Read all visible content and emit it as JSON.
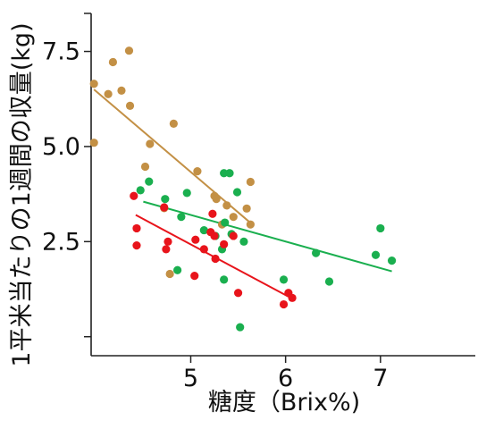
{
  "chart_data": {
    "type": "scatter",
    "title": "",
    "xlabel": "糖度（Brix%)",
    "ylabel": "1平米当たりの1週間の収量(kg)",
    "xlim": [
      3.95,
      8.0
    ],
    "ylim": [
      -0.5,
      8.5
    ],
    "x_ticks": [
      5,
      6,
      7
    ],
    "x_tick_labels": [
      "5",
      "6",
      "7"
    ],
    "y_ticks": [
      2.5,
      5.0,
      7.5
    ],
    "y_tick_labels": [
      "2.5",
      "5.0",
      "7.5"
    ],
    "y_minor_ticks": [
      0,
      8.5
    ],
    "grid": false,
    "legend": "none",
    "series": [
      {
        "color": "#c39045",
        "points": [
          [
            3.98,
            6.65
          ],
          [
            3.98,
            5.1
          ],
          [
            4.13,
            6.38
          ],
          [
            4.18,
            7.22
          ],
          [
            4.27,
            6.47
          ],
          [
            4.35,
            7.52
          ],
          [
            4.36,
            6.07
          ],
          [
            4.52,
            4.47
          ],
          [
            4.57,
            5.07
          ],
          [
            4.72,
            3.38
          ],
          [
            4.78,
            1.65
          ],
          [
            4.82,
            5.6
          ],
          [
            5.07,
            4.35
          ],
          [
            5.25,
            3.7
          ],
          [
            5.27,
            3.62
          ],
          [
            5.33,
            2.95
          ],
          [
            5.38,
            3.45
          ],
          [
            5.45,
            3.15
          ],
          [
            5.59,
            3.37
          ],
          [
            5.63,
            2.95
          ],
          [
            5.63,
            4.07
          ]
        ],
        "trend": [
          [
            3.98,
            6.5
          ],
          [
            5.65,
            2.95
          ]
        ]
      },
      {
        "color": "#1aaf4f",
        "points": [
          [
            4.47,
            3.85
          ],
          [
            4.56,
            4.08
          ],
          [
            4.73,
            3.62
          ],
          [
            4.86,
            1.75
          ],
          [
            4.9,
            3.15
          ],
          [
            4.96,
            3.78
          ],
          [
            5.14,
            2.8
          ],
          [
            5.26,
            2.65
          ],
          [
            5.33,
            2.3
          ],
          [
            5.35,
            1.5
          ],
          [
            5.35,
            4.3
          ],
          [
            5.36,
            3.0
          ],
          [
            5.41,
            4.3
          ],
          [
            5.43,
            2.7
          ],
          [
            5.49,
            3.8
          ],
          [
            5.52,
            0.25
          ],
          [
            5.56,
            2.5
          ],
          [
            5.98,
            1.5
          ],
          [
            6.32,
            2.2
          ],
          [
            6.46,
            1.45
          ],
          [
            6.95,
            2.15
          ],
          [
            7.0,
            2.85
          ],
          [
            7.12,
            2.0
          ]
        ],
        "trend": [
          [
            4.5,
            3.55
          ],
          [
            7.12,
            1.72
          ]
        ]
      },
      {
        "color": "#e8141b",
        "points": [
          [
            4.4,
            3.7
          ],
          [
            4.43,
            2.85
          ],
          [
            4.43,
            2.4
          ],
          [
            4.72,
            3.4
          ],
          [
            4.74,
            2.3
          ],
          [
            4.76,
            2.5
          ],
          [
            5.04,
            1.6
          ],
          [
            5.05,
            2.55
          ],
          [
            5.14,
            2.3
          ],
          [
            5.21,
            2.75
          ],
          [
            5.23,
            3.23
          ],
          [
            5.25,
            2.65
          ],
          [
            5.26,
            2.05
          ],
          [
            5.35,
            2.43
          ],
          [
            5.45,
            2.65
          ],
          [
            5.5,
            1.15
          ],
          [
            5.98,
            0.85
          ],
          [
            6.03,
            1.15
          ],
          [
            6.07,
            1.02
          ]
        ],
        "trend": [
          [
            4.42,
            3.2
          ],
          [
            6.07,
            1.0
          ]
        ]
      }
    ]
  }
}
